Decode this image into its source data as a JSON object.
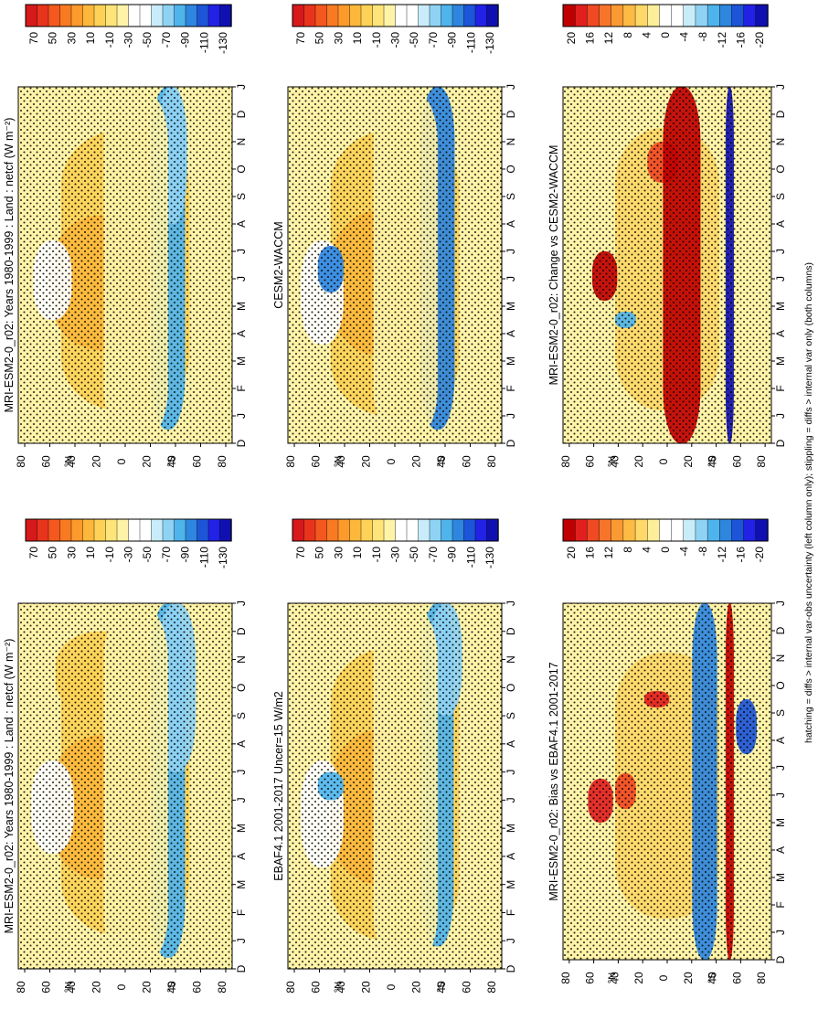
{
  "footnote": "hatching = diffs > internal var-obs uncertainty (left column only); stippling = diffs > internal var only (both columns)",
  "colors": {
    "abs": [
      "#d7191c",
      "#e8341c",
      "#f4581e",
      "#f97a22",
      "#fd9a2c",
      "#fdb83c",
      "#fed256",
      "#ffe47a",
      "#fff3a8",
      "#ffffff",
      "#ffffff",
      "#c8ecfa",
      "#8fd3f4",
      "#4fb4ec",
      "#2e86de",
      "#1c55d8",
      "#2222e6",
      "#1010b0"
    ],
    "diff": [
      "#c00000",
      "#e21f1f",
      "#f04a24",
      "#f7752a",
      "#fb9a33",
      "#fdbb45",
      "#fed868",
      "#ffee99",
      "#ffffff",
      "#ffffff",
      "#c8ecfa",
      "#8fd3f4",
      "#4fb4ec",
      "#2e86de",
      "#1c55d8",
      "#2222e6",
      "#1010b0"
    ]
  },
  "months": [
    "D",
    "J",
    "F",
    "M",
    "A",
    "M",
    "J",
    "J",
    "A",
    "S",
    "O",
    "N",
    "D",
    "J"
  ],
  "lat_ticks": [
    "80",
    "60",
    "40",
    "20",
    "0",
    "20",
    "40",
    "60",
    "80"
  ],
  "lat_hemi_labels": [
    "°N",
    "°S"
  ],
  "chart_data": [
    {
      "panel": "top-left",
      "type": "heatmap",
      "title": "MRI-ESM2-0_r02: Years 1980-1999 : Land : netcf (W m⁻²)",
      "colorbar_labels": [
        "70",
        "50",
        "30",
        "10",
        "-10",
        "-30",
        "-50",
        "-70",
        "-90",
        "-110",
        "-130"
      ],
      "colorbar_type": "abs",
      "fields": [
        [
          "#fed256",
          0.5,
          1.2,
          11.4,
          0.6
        ],
        [
          "#fdb83c",
          0.4,
          3.2,
          8.3,
          0.5
        ],
        [
          "#ffffff",
          0.16,
          4.1,
          7.4,
          0.2
        ],
        [
          "#fed256",
          0.4,
          9.0,
          12.0,
          0.45
        ],
        [
          "#4fb4ec",
          0.7,
          0.4,
          13,
          0.16
        ],
        [
          "#8fd3f4",
          0.74,
          7.0,
          13,
          0.18
        ],
        [
          "#fff3a8",
          0.55,
          0.0,
          13,
          0.3
        ]
      ]
    },
    {
      "panel": "top-right",
      "type": "heatmap",
      "title": "MRI-ESM2-0_r02: Years 1980-1999 : Land : netcf (W m⁻²)",
      "colorbar_labels": [
        "70",
        "50",
        "30",
        "10",
        "-10",
        "-30",
        "-50",
        "-70",
        "-90",
        "-110",
        "-130"
      ],
      "colorbar_type": "abs",
      "fields": [
        [
          "#fed256",
          0.5,
          1.2,
          11.4,
          0.6
        ],
        [
          "#fdb83c",
          0.4,
          3.4,
          8.3,
          0.5
        ],
        [
          "#ffffff",
          0.16,
          4.5,
          7.4,
          0.18
        ],
        [
          "#4fb4ec",
          0.7,
          0.5,
          13,
          0.16
        ],
        [
          "#8fd3f4",
          0.72,
          8.0,
          13,
          0.14
        ],
        [
          "#fff3a8",
          0.55,
          0.0,
          13,
          0.3
        ]
      ]
    },
    {
      "panel": "middle-left",
      "type": "heatmap",
      "title": "EBAF4.1 2001-2017 Uncer=15 W/m2",
      "colorbar_labels": [
        "70",
        "50",
        "30",
        "10",
        "-10",
        "-30",
        "-50",
        "-70",
        "-90",
        "-110",
        "-130"
      ],
      "colorbar_type": "abs",
      "fields": [
        [
          "#fed256",
          0.5,
          1.0,
          11.4,
          0.6
        ],
        [
          "#fdb83c",
          0.45,
          3.0,
          8.5,
          0.5
        ],
        [
          "#ffffff",
          0.16,
          3.6,
          7.4,
          0.2
        ],
        [
          "#4fb4ec",
          0.2,
          6.0,
          7.0,
          0.12
        ],
        [
          "#4fb4ec",
          0.7,
          0.8,
          13,
          0.15
        ],
        [
          "#8fd3f4",
          0.74,
          9.0,
          13,
          0.15
        ],
        [
          "#fff3a8",
          0.55,
          0.0,
          13,
          0.3
        ]
      ]
    },
    {
      "panel": "middle-right",
      "type": "heatmap",
      "title": "CESM2-WACCM",
      "colorbar_labels": [
        "70",
        "50",
        "30",
        "10",
        "-10",
        "-30",
        "-50",
        "-70",
        "-90",
        "-110",
        "-130"
      ],
      "colorbar_type": "abs",
      "fields": [
        [
          "#fed256",
          0.5,
          1.0,
          11.4,
          0.6
        ],
        [
          "#fdb83c",
          0.45,
          3.2,
          8.5,
          0.5
        ],
        [
          "#ffffff",
          0.16,
          3.6,
          7.4,
          0.2
        ],
        [
          "#2e86de",
          0.2,
          5.5,
          7.2,
          0.12
        ],
        [
          "#2e86de",
          0.7,
          0.5,
          13,
          0.16
        ],
        [
          "#fff3a8",
          0.55,
          0.0,
          13,
          0.3
        ]
      ]
    },
    {
      "panel": "bottom-left",
      "type": "heatmap",
      "title": "MRI-ESM2-0_r02: Bias vs EBAF4.1 2001-2017",
      "colorbar_labels": [
        "20",
        "16",
        "12",
        "8",
        "4",
        "0",
        "-4",
        "-8",
        "-12",
        "-16",
        "-20"
      ],
      "colorbar_type": "diff",
      "fields": [
        [
          "#fed868",
          0.5,
          1.5,
          11.2,
          0.5
        ],
        [
          "#e21f1f",
          0.18,
          5.0,
          6.6,
          0.12
        ],
        [
          "#f04a24",
          0.3,
          5.5,
          6.8,
          0.1
        ],
        [
          "#e21f1f",
          0.45,
          9.2,
          9.8,
          0.12
        ],
        [
          "#2e86de",
          0.68,
          0.0,
          13,
          0.12
        ],
        [
          "#1c55d8",
          0.88,
          7.5,
          9.5,
          0.1
        ],
        [
          "#c00000",
          0.8,
          0.0,
          13,
          0.04
        ]
      ]
    },
    {
      "panel": "bottom-right",
      "type": "heatmap",
      "title": "MRI-ESM2-0_r02: Change vs CESM2-WACCM",
      "colorbar_labels": [
        "20",
        "16",
        "12",
        "8",
        "4",
        "0",
        "-4",
        "-8",
        "-12",
        "-16",
        "-20"
      ],
      "colorbar_type": "diff",
      "fields": [
        [
          "#fed868",
          0.5,
          1.2,
          11.5,
          0.5
        ],
        [
          "#c00000",
          0.2,
          5.2,
          7.0,
          0.12
        ],
        [
          "#f04a24",
          0.48,
          9.5,
          11.0,
          0.15
        ],
        [
          "#4fb4ec",
          0.3,
          4.2,
          4.8,
          0.1
        ],
        [
          "#c00000",
          0.57,
          0.0,
          13,
          0.18
        ],
        [
          "#1010b0",
          0.8,
          0.0,
          13,
          0.04
        ]
      ]
    }
  ]
}
